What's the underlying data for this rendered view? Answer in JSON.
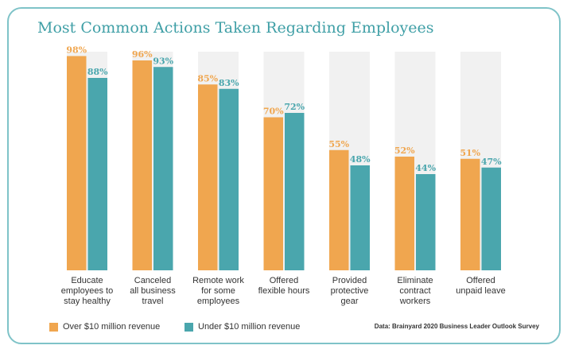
{
  "colors": {
    "series1": "#f0a64f",
    "series2": "#4aa6ad",
    "track": "#f1f1f1",
    "border": "#7fc3c8",
    "title": "#3f9fa6"
  },
  "chart_data": {
    "type": "bar",
    "title": "Most Common Actions Taken Regarding Employees",
    "categories": [
      "Educate\nemployees to\nstay healthy",
      "Canceled\nall business\ntravel",
      "Remote work\nfor some\nemployees",
      "Offered\nflexible hours",
      "Provided\nprotective\ngear",
      "Eliminate\ncontract\nworkers",
      "Offered\nunpaid leave"
    ],
    "series": [
      {
        "name": "Over $10 million revenue",
        "values": [
          98,
          96,
          85,
          70,
          55,
          52,
          51
        ],
        "labels": [
          "98%",
          "96%",
          "85%",
          "70%",
          "55%",
          "52%",
          "51%"
        ]
      },
      {
        "name": "Under $10 million revenue",
        "values": [
          88,
          93,
          83,
          72,
          48,
          44,
          47
        ],
        "labels": [
          "88%",
          "93%",
          "83%",
          "72%",
          "48%",
          "44%",
          "47%"
        ]
      }
    ],
    "ylim": [
      0,
      100
    ],
    "xlabel": "",
    "ylabel": "",
    "legend": "bottom-left",
    "source": "Data: Brainyard 2020 Business Leader Outlook Survey"
  }
}
